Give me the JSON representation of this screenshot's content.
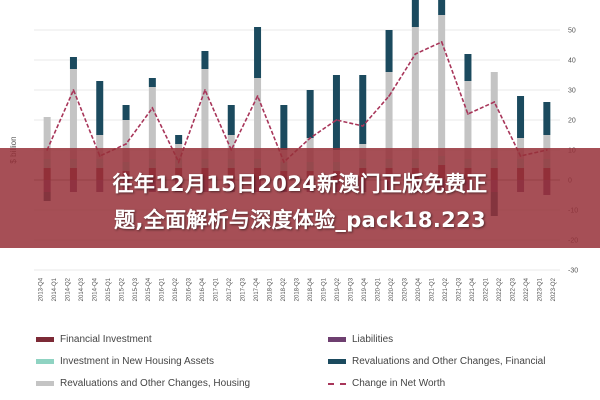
{
  "banner": {
    "line1": "往年12月15日2024新澳门正版免费正",
    "line2": "题,全面解析与深度体验_pack18.223"
  },
  "colors": {
    "financial_investment": "#7c2a36",
    "liabilities": "#6e3f70",
    "housing_assets": "#8fd3c2",
    "revaluations_financial": "#1b4a5e",
    "revaluations_housing": "#c4c4c4",
    "net_worth": "#a8365a"
  },
  "chart_data": {
    "type": "bar",
    "title": "",
    "ylabel": "$ billion",
    "ylim": [
      -30,
      50
    ],
    "yticks": [
      -30,
      -20,
      -10,
      0,
      10,
      20,
      30,
      40,
      50
    ],
    "grid": true,
    "legend_position": "bottom",
    "categories": [
      "2013-Q4",
      "2014-Q2",
      "2014-Q4",
      "2015-Q2",
      "2015-Q4",
      "2016-Q2",
      "2016-Q4",
      "2017-Q2",
      "2017-Q4",
      "2018-Q2",
      "2018-Q4",
      "2019-Q2",
      "2019-Q4",
      "2020-Q2",
      "2020-Q4",
      "2021-Q2",
      "2021-Q4",
      "2022-Q2",
      "2022-Q4",
      "2023-Q2"
    ],
    "tick_labels": [
      "2013-Q4",
      "2014-Q1",
      "2014-Q2",
      "2014-Q3",
      "2014-Q4",
      "2015-Q1",
      "2015-Q2",
      "2015-Q3",
      "2015-Q4",
      "2016-Q1",
      "2016-Q2",
      "2016-Q3",
      "2016-Q4",
      "2017-Q1",
      "2017-Q2",
      "2017-Q3",
      "2017-Q4",
      "2018-Q1",
      "2018-Q2",
      "2018-Q3",
      "2018-Q4",
      "2019-Q1",
      "2019-Q2",
      "2019-Q3",
      "2019-Q4",
      "2020-Q1",
      "2020-Q2",
      "2020-Q3",
      "2020-Q4",
      "2021-Q1",
      "2021-Q2",
      "2021-Q3",
      "2021-Q4",
      "2022-Q1",
      "2022-Q2",
      "2022-Q3",
      "2022-Q4",
      "2023-Q1",
      "2023-Q2"
    ],
    "series": [
      {
        "name": "Financial Investment",
        "values": [
          4,
          4,
          4,
          3,
          4,
          4,
          4,
          4,
          4,
          3,
          3,
          3,
          4,
          4,
          4,
          5,
          4,
          4,
          4,
          4
        ]
      },
      {
        "name": "Investment in New Housing Assets",
        "values": [
          3,
          3,
          3,
          3,
          3,
          3,
          3,
          3,
          3,
          3,
          3,
          3,
          3,
          3,
          3,
          3,
          3,
          3,
          3,
          3
        ]
      },
      {
        "name": "Revaluations and Other Changes, Housing",
        "values": [
          14,
          30,
          8,
          14,
          24,
          5,
          30,
          8,
          27,
          4,
          8,
          4,
          5,
          29,
          44,
          47,
          26,
          29,
          7,
          8
        ]
      },
      {
        "name": "Liabilities",
        "values": [
          -4,
          -4,
          -4,
          -4,
          -4,
          -4,
          -4,
          -4,
          -4,
          -4,
          -4,
          -4,
          -4,
          -4,
          -4,
          -4,
          -4,
          -4,
          -4,
          -5
        ]
      },
      {
        "name": "Revaluations and Other Changes, Financial",
        "values": [
          -3,
          4,
          18,
          5,
          3,
          3,
          6,
          10,
          17,
          15,
          16,
          25,
          23,
          14,
          13,
          16,
          9,
          -8,
          14,
          11
        ]
      },
      {
        "name": "Change in Net Worth",
        "values": [
          10,
          30,
          8,
          12,
          24,
          6,
          30,
          10,
          28,
          6,
          14,
          20,
          18,
          28,
          42,
          46,
          22,
          26,
          8,
          10
        ]
      }
    ]
  },
  "legend": [
    {
      "label": "Financial Investment",
      "key": "financial_investment",
      "style": "bar"
    },
    {
      "label": "Liabilities",
      "key": "liabilities",
      "style": "bar"
    },
    {
      "label": "Investment in New Housing Assets",
      "key": "housing_assets",
      "style": "bar"
    },
    {
      "label": "Revaluations and Other Changes, Financial",
      "key": "revaluations_financial",
      "style": "bar"
    },
    {
      "label": "Revaluations and Other Changes, Housing",
      "key": "revaluations_housing",
      "style": "bar"
    },
    {
      "label": "Change in Net Worth",
      "key": "net_worth",
      "style": "dash"
    }
  ]
}
